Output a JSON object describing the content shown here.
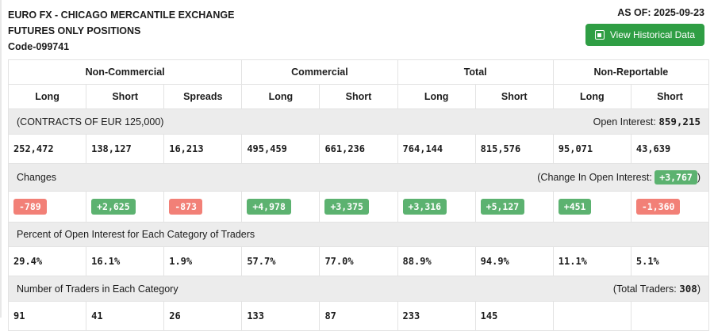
{
  "header": {
    "title_line1": "EURO FX - CHICAGO MERCANTILE EXCHANGE",
    "title_line2": "FUTURES ONLY POSITIONS",
    "code": "Code-099741",
    "as_of": "AS OF: 2025-09-23",
    "button_label": "View Historical Data"
  },
  "table": {
    "groups": [
      {
        "label": "Non-Commercial"
      },
      {
        "label": "Commercial"
      },
      {
        "label": "Total"
      },
      {
        "label": "Non-Reportable"
      }
    ],
    "columns": [
      "Long",
      "Short",
      "Spreads",
      "Long",
      "Short",
      "Long",
      "Short",
      "Long",
      "Short"
    ],
    "contracts_label": "(CONTRACTS OF EUR 125,000)",
    "open_interest_label": "Open Interest:",
    "open_interest_value": "859,215",
    "positions": [
      "252,472",
      "138,127",
      "16,213",
      "495,459",
      "661,236",
      "764,144",
      "815,576",
      "95,071",
      "43,639"
    ],
    "changes_label": "Changes",
    "change_oi_prefix": "(Change In Open Interest:",
    "change_oi_value": "+3,767",
    "change_oi_suffix": ")",
    "changes": [
      "-789",
      "+2,625",
      "-873",
      "+4,978",
      "+3,375",
      "+3,316",
      "+5,127",
      "+451",
      "-1,360"
    ],
    "percent_label": "Percent of Open Interest for Each Category of Traders",
    "percents": [
      "29.4%",
      "16.1%",
      "1.9%",
      "57.7%",
      "77.0%",
      "88.9%",
      "94.9%",
      "11.1%",
      "5.1%"
    ],
    "traders_label": "Number of Traders in Each Category",
    "total_traders_prefix": "(Total Traders:",
    "total_traders_value": "308",
    "total_traders_suffix": ")",
    "traders": [
      "91",
      "41",
      "26",
      "133",
      "87",
      "233",
      "145",
      "",
      ""
    ]
  },
  "colors": {
    "positive": "#5cb270",
    "negative": "#f28077",
    "button": "#2f9e44",
    "band": "#ececec"
  }
}
